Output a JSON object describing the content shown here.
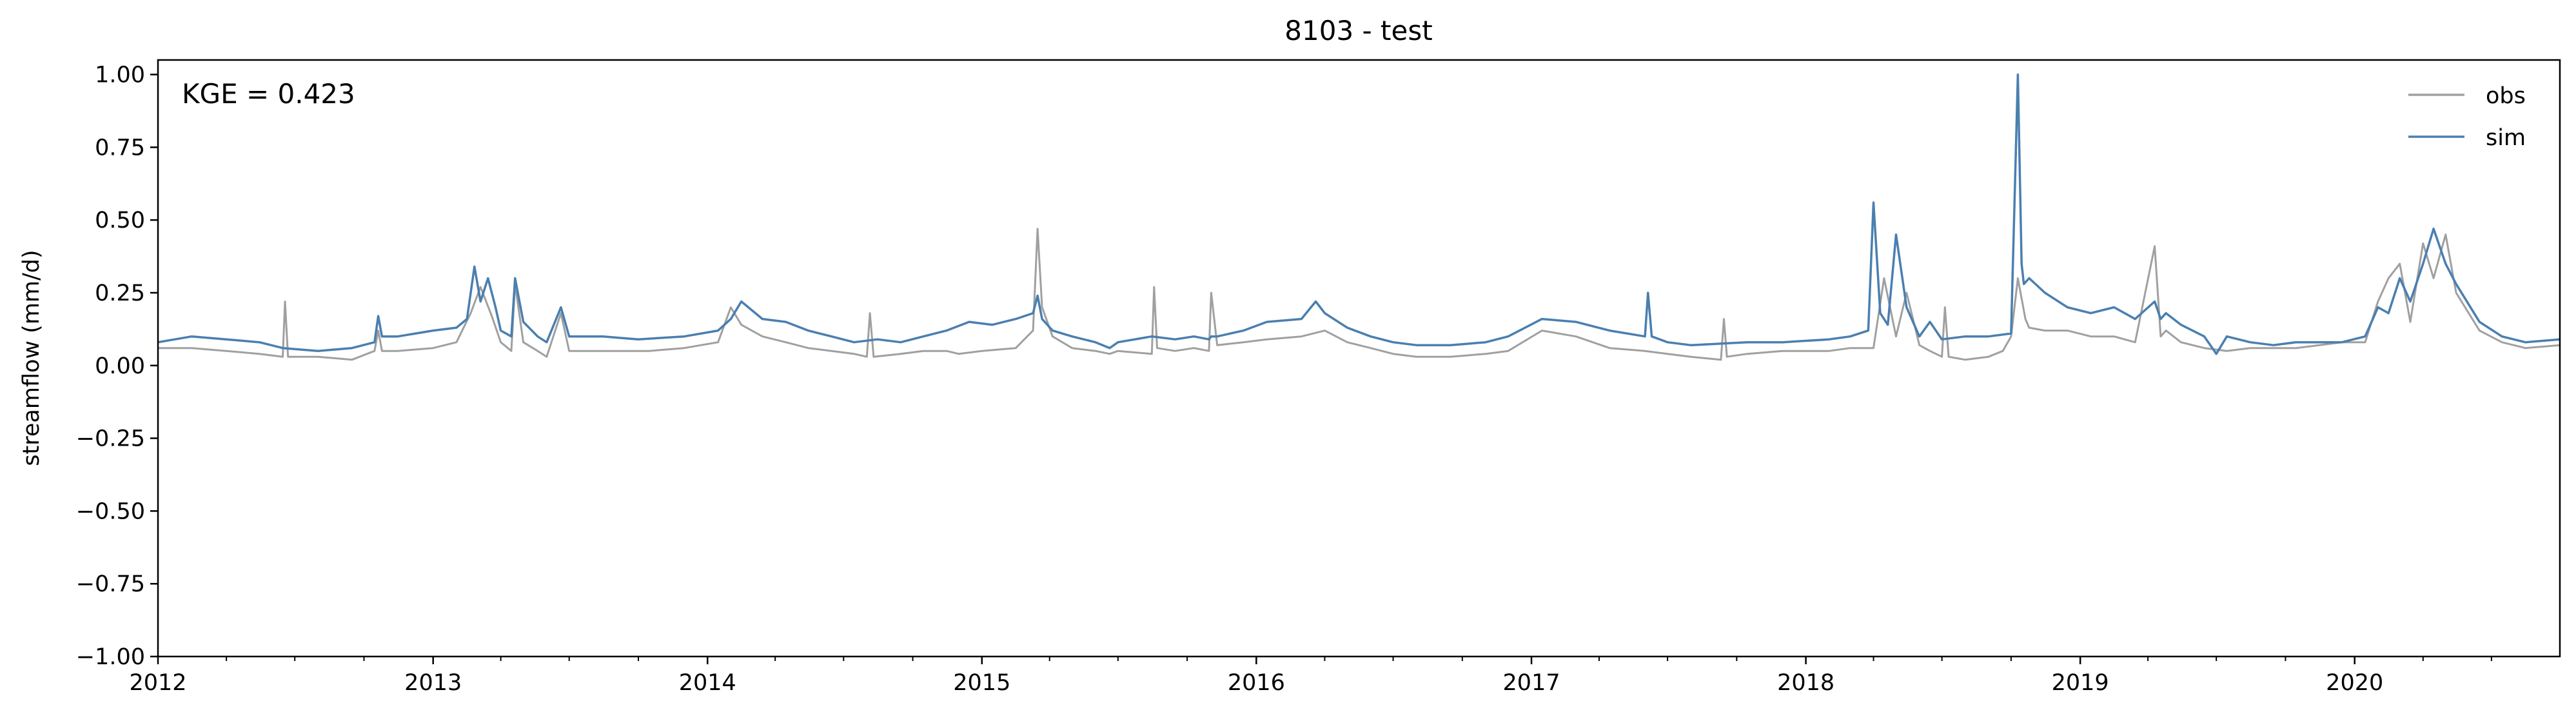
{
  "chart_data": {
    "type": "line",
    "title": "8103 - test",
    "xlabel": "",
    "ylabel": "streamflow (mm/d)",
    "xlim": [
      "2012-01-01",
      "2020-09-30"
    ],
    "ylim": [
      -1.0,
      1.05
    ],
    "x_ticks": [
      "2012",
      "2013",
      "2014",
      "2015",
      "2016",
      "2017",
      "2018",
      "2019",
      "2020"
    ],
    "y_ticks": [
      "−1.00",
      "−0.75",
      "−0.50",
      "−0.25",
      "0.00",
      "0.25",
      "0.50",
      "0.75",
      "1.00"
    ],
    "annotation": "KGE = 0.423",
    "legend_placement": "top-right",
    "grid": false,
    "series": [
      {
        "name": "obs",
        "color": "#a0a0a0",
        "x": [
          "2012-01-01",
          "2012-02-15",
          "2012-04-01",
          "2012-05-15",
          "2012-06-15",
          "2012-06-18",
          "2012-06-22",
          "2012-08-01",
          "2012-09-15",
          "2012-10-15",
          "2012-10-20",
          "2012-10-25",
          "2012-11-15",
          "2013-01-01",
          "2013-02-01",
          "2013-02-20",
          "2013-03-05",
          "2013-03-20",
          "2013-04-01",
          "2013-04-15",
          "2013-04-20",
          "2013-05-01",
          "2013-05-20",
          "2013-06-01",
          "2013-06-20",
          "2013-07-01",
          "2013-08-15",
          "2013-09-15",
          "2013-10-15",
          "2013-12-01",
          "2014-01-15",
          "2014-02-01",
          "2014-02-15",
          "2014-03-15",
          "2014-04-15",
          "2014-05-15",
          "2014-06-15",
          "2014-07-15",
          "2014-08-01",
          "2014-08-05",
          "2014-08-10",
          "2014-09-15",
          "2014-10-15",
          "2014-11-15",
          "2014-12-01",
          "2015-01-01",
          "2015-02-15",
          "2015-03-10",
          "2015-03-16",
          "2015-03-22",
          "2015-04-05",
          "2015-05-01",
          "2015-06-01",
          "2015-06-20",
          "2015-07-01",
          "2015-08-15",
          "2015-08-18",
          "2015-08-22",
          "2015-09-15",
          "2015-10-10",
          "2015-10-30",
          "2015-11-02",
          "2015-11-10",
          "2015-12-15",
          "2016-01-15",
          "2016-03-01",
          "2016-04-01",
          "2016-05-01",
          "2016-06-01",
          "2016-07-01",
          "2016-08-01",
          "2016-09-15",
          "2016-11-01",
          "2016-12-01",
          "2017-01-15",
          "2017-03-01",
          "2017-04-15",
          "2017-06-01",
          "2017-07-01",
          "2017-08-01",
          "2017-09-10",
          "2017-09-14",
          "2017-09-18",
          "2017-10-15",
          "2017-12-01",
          "2018-02-01",
          "2018-03-01",
          "2018-04-01",
          "2018-04-15",
          "2018-05-01",
          "2018-05-15",
          "2018-06-01",
          "2018-06-15",
          "2018-07-01",
          "2018-07-05",
          "2018-07-10",
          "2018-08-01",
          "2018-09-01",
          "2018-09-20",
          "2018-10-01",
          "2018-10-10",
          "2018-10-20",
          "2018-10-25",
          "2018-11-15",
          "2018-12-15",
          "2019-01-15",
          "2019-02-15",
          "2019-03-15",
          "2019-04-10",
          "2019-04-18",
          "2019-04-25",
          "2019-05-15",
          "2019-06-15",
          "2019-07-15",
          "2019-08-15",
          "2019-09-15",
          "2019-10-15",
          "2019-11-15",
          "2019-12-15",
          "2020-01-15",
          "2020-02-01",
          "2020-02-15",
          "2020-03-01",
          "2020-03-15",
          "2020-04-01",
          "2020-04-15",
          "2020-05-01",
          "2020-05-15",
          "2020-06-15",
          "2020-07-15",
          "2020-08-15",
          "2020-09-30"
        ],
        "values": [
          0.06,
          0.06,
          0.05,
          0.04,
          0.03,
          0.22,
          0.03,
          0.03,
          0.02,
          0.05,
          0.12,
          0.05,
          0.05,
          0.06,
          0.08,
          0.18,
          0.27,
          0.17,
          0.08,
          0.05,
          0.28,
          0.08,
          0.05,
          0.03,
          0.18,
          0.05,
          0.05,
          0.05,
          0.05,
          0.06,
          0.08,
          0.2,
          0.14,
          0.1,
          0.08,
          0.06,
          0.05,
          0.04,
          0.03,
          0.18,
          0.03,
          0.04,
          0.05,
          0.05,
          0.04,
          0.05,
          0.06,
          0.12,
          0.47,
          0.2,
          0.1,
          0.06,
          0.05,
          0.04,
          0.05,
          0.04,
          0.27,
          0.06,
          0.05,
          0.06,
          0.05,
          0.25,
          0.07,
          0.08,
          0.09,
          0.1,
          0.12,
          0.08,
          0.06,
          0.04,
          0.03,
          0.03,
          0.04,
          0.05,
          0.12,
          0.1,
          0.06,
          0.05,
          0.04,
          0.03,
          0.02,
          0.16,
          0.03,
          0.04,
          0.05,
          0.05,
          0.06,
          0.06,
          0.3,
          0.1,
          0.25,
          0.07,
          0.05,
          0.03,
          0.2,
          0.03,
          0.02,
          0.03,
          0.05,
          0.1,
          0.3,
          0.16,
          0.13,
          0.12,
          0.12,
          0.1,
          0.1,
          0.08,
          0.41,
          0.1,
          0.12,
          0.08,
          0.06,
          0.05,
          0.06,
          0.06,
          0.06,
          0.07,
          0.08,
          0.08,
          0.22,
          0.3,
          0.35,
          0.15,
          0.42,
          0.3,
          0.45,
          0.25,
          0.12,
          0.08,
          0.06,
          0.07
        ]
      },
      {
        "name": "sim",
        "color": "#4a7fb0",
        "x": [
          "2012-01-01",
          "2012-02-15",
          "2012-04-01",
          "2012-05-15",
          "2012-06-15",
          "2012-08-01",
          "2012-09-15",
          "2012-10-15",
          "2012-10-20",
          "2012-10-25",
          "2012-11-15",
          "2013-01-01",
          "2013-02-01",
          "2013-02-15",
          "2013-02-25",
          "2013-03-05",
          "2013-03-15",
          "2013-03-25",
          "2013-04-01",
          "2013-04-15",
          "2013-04-20",
          "2013-05-01",
          "2013-05-20",
          "2013-06-01",
          "2013-06-20",
          "2013-07-01",
          "2013-08-15",
          "2013-10-01",
          "2013-12-01",
          "2014-01-15",
          "2014-02-01",
          "2014-02-15",
          "2014-03-15",
          "2014-04-15",
          "2014-05-15",
          "2014-06-15",
          "2014-07-15",
          "2014-08-15",
          "2014-09-15",
          "2014-10-15",
          "2014-11-15",
          "2014-12-15",
          "2015-01-15",
          "2015-02-15",
          "2015-03-10",
          "2015-03-16",
          "2015-03-22",
          "2015-04-05",
          "2015-05-01",
          "2015-06-01",
          "2015-06-20",
          "2015-07-01",
          "2015-08-15",
          "2015-09-15",
          "2015-10-10",
          "2015-10-30",
          "2015-11-02",
          "2015-11-10",
          "2015-12-15",
          "2016-01-15",
          "2016-03-01",
          "2016-03-20",
          "2016-04-01",
          "2016-05-01",
          "2016-06-01",
          "2016-07-01",
          "2016-08-01",
          "2016-09-15",
          "2016-11-01",
          "2016-12-01",
          "2017-01-15",
          "2017-03-01",
          "2017-04-15",
          "2017-06-01",
          "2017-06-05",
          "2017-06-10",
          "2017-07-01",
          "2017-08-01",
          "2017-10-15",
          "2017-12-01",
          "2018-02-01",
          "2018-03-01",
          "2018-03-25",
          "2018-04-01",
          "2018-04-10",
          "2018-04-20",
          "2018-05-01",
          "2018-05-15",
          "2018-06-01",
          "2018-06-15",
          "2018-07-01",
          "2018-08-01",
          "2018-09-01",
          "2018-10-01",
          "2018-10-10",
          "2018-10-15",
          "2018-10-18",
          "2018-10-25",
          "2018-11-15",
          "2018-12-15",
          "2019-01-15",
          "2019-02-15",
          "2019-03-15",
          "2019-04-10",
          "2019-04-18",
          "2019-04-25",
          "2019-05-15",
          "2019-06-15",
          "2019-07-01",
          "2019-07-15",
          "2019-08-15",
          "2019-09-15",
          "2019-10-15",
          "2019-11-15",
          "2019-12-15",
          "2020-01-15",
          "2020-02-01",
          "2020-02-15",
          "2020-03-01",
          "2020-03-15",
          "2020-04-01",
          "2020-04-15",
          "2020-05-01",
          "2020-05-15",
          "2020-06-15",
          "2020-07-15",
          "2020-08-15",
          "2020-09-30"
        ],
        "values": [
          0.08,
          0.1,
          0.09,
          0.08,
          0.06,
          0.05,
          0.06,
          0.08,
          0.17,
          0.1,
          0.1,
          0.12,
          0.13,
          0.16,
          0.34,
          0.22,
          0.3,
          0.2,
          0.12,
          0.1,
          0.3,
          0.15,
          0.1,
          0.08,
          0.2,
          0.1,
          0.1,
          0.09,
          0.1,
          0.12,
          0.16,
          0.22,
          0.16,
          0.15,
          0.12,
          0.1,
          0.08,
          0.09,
          0.08,
          0.1,
          0.12,
          0.15,
          0.14,
          0.16,
          0.18,
          0.24,
          0.16,
          0.12,
          0.1,
          0.08,
          0.06,
          0.08,
          0.1,
          0.09,
          0.1,
          0.09,
          0.1,
          0.1,
          0.12,
          0.15,
          0.16,
          0.22,
          0.18,
          0.13,
          0.1,
          0.08,
          0.07,
          0.07,
          0.08,
          0.1,
          0.16,
          0.15,
          0.12,
          0.1,
          0.25,
          0.1,
          0.08,
          0.07,
          0.08,
          0.08,
          0.09,
          0.1,
          0.12,
          0.56,
          0.18,
          0.14,
          0.45,
          0.2,
          0.1,
          0.15,
          0.09,
          0.1,
          0.1,
          0.11,
          1.0,
          0.35,
          0.28,
          0.3,
          0.25,
          0.2,
          0.18,
          0.2,
          0.16,
          0.22,
          0.16,
          0.18,
          0.14,
          0.1,
          0.04,
          0.1,
          0.08,
          0.07,
          0.08,
          0.08,
          0.08,
          0.1,
          0.2,
          0.18,
          0.3,
          0.22,
          0.35,
          0.47,
          0.35,
          0.28,
          0.15,
          0.1,
          0.08,
          0.09
        ]
      }
    ]
  }
}
